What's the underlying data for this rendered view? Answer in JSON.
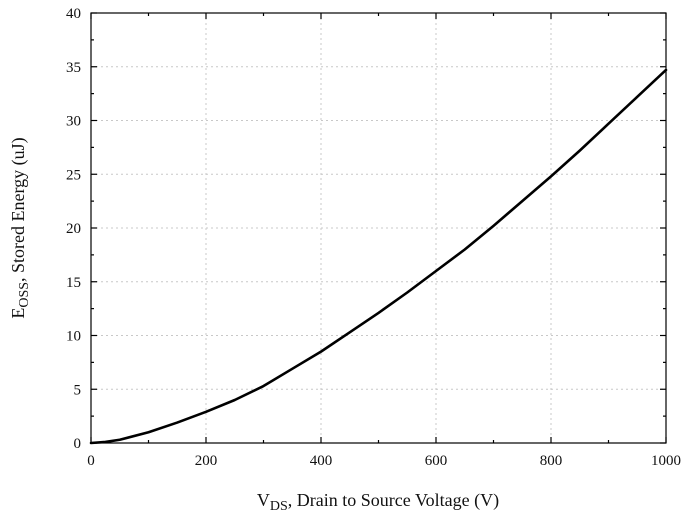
{
  "chart_data": {
    "type": "line",
    "xlabel": {
      "main": "V",
      "sub": "DS",
      "rest": ", Drain to Source Voltage (V)"
    },
    "ylabel": {
      "main": "E",
      "sub": "OSS",
      "rest": ", Stored Energy (uJ)"
    },
    "xlim": [
      0,
      1000
    ],
    "ylim": [
      0,
      40
    ],
    "x_ticks": [
      0,
      200,
      400,
      600,
      800,
      1000
    ],
    "y_ticks": [
      0,
      5,
      10,
      15,
      20,
      25,
      30,
      35,
      40
    ],
    "grid": true,
    "series": [
      {
        "x": [
          0,
          25,
          50,
          100,
          150,
          200,
          250,
          300,
          350,
          400,
          450,
          500,
          550,
          600,
          650,
          700,
          750,
          800,
          850,
          900,
          950,
          1000
        ],
        "y": [
          0,
          0.1,
          0.3,
          1.0,
          1.9,
          2.9,
          4.0,
          5.3,
          6.9,
          8.5,
          10.3,
          12.1,
          14.0,
          16.0,
          18.0,
          20.2,
          22.5,
          24.8,
          27.2,
          29.7,
          32.2,
          34.7
        ]
      }
    ]
  }
}
